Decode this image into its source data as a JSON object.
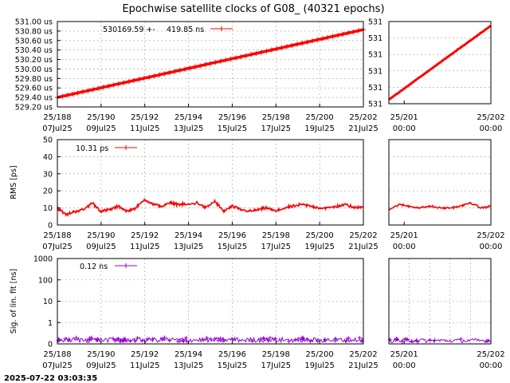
{
  "title": "Epochwise satellite clocks of G08_ (40321 epochs)",
  "timestamp": "2025-07-22 03:03:35",
  "colors": {
    "clock": "#ff0000",
    "rms": "#ff0000",
    "sigma": "#9400d3",
    "grid": "#a0a0a0"
  },
  "chart_data": [
    {
      "id": "clock-main",
      "type": "line",
      "title": "Epochwise satellite clocks of G08_ (40321 epochs)",
      "xlabel": "",
      "ylabel": "",
      "ylim": [
        529.2,
        531.0
      ],
      "yticks": [
        "531.00 us",
        "530.80 us",
        "530.60 us",
        "530.40 us",
        "530.20 us",
        "530.00 us",
        "529.80 us",
        "529.60 us",
        "529.40 us",
        "529.20 us"
      ],
      "xticks": [
        {
          "top": "25/188",
          "bottom": "07Jul25"
        },
        {
          "top": "25/190",
          "bottom": "09Jul25"
        },
        {
          "top": "25/192",
          "bottom": "11Jul25"
        },
        {
          "top": "25/194",
          "bottom": "13Jul25"
        },
        {
          "top": "25/196",
          "bottom": "15Jul25"
        },
        {
          "top": "25/198",
          "bottom": "17Jul25"
        },
        {
          "top": "25/200",
          "bottom": "19Jul25"
        },
        {
          "top": "25/202",
          "bottom": "21Jul25"
        }
      ],
      "legend": {
        "text1": "530169.59 +-",
        "text2": "419.85 ns",
        "placement": "top"
      },
      "series": [
        {
          "name": "530169.59 +- 419.85 ns",
          "x": [
            0,
            14
          ],
          "y": [
            529.4,
            530.83
          ],
          "noise": 0.004
        }
      ],
      "grid": true
    },
    {
      "id": "clock-zoom",
      "type": "line",
      "ylim": [
        530.165,
        530.175
      ],
      "yticks": [
        "531",
        "531",
        "531",
        "531",
        "531",
        "531"
      ],
      "xticks": [
        {
          "top": "25/201",
          "bottom": "00:00"
        },
        {
          "top": "25/202",
          "bottom": "00:00"
        }
      ],
      "series": [
        {
          "x": [
            0,
            1
          ],
          "y": [
            530.1655,
            530.1745
          ],
          "noise": 4e-05
        }
      ],
      "grid": true
    },
    {
      "id": "rms-main",
      "type": "line",
      "ylabel": "RMS [ps]",
      "ylim": [
        0,
        50
      ],
      "yticks": [
        "50",
        "40",
        "30",
        "20",
        "10",
        "0"
      ],
      "xticks": [
        {
          "top": "25/188",
          "bottom": "07Jul25"
        },
        {
          "top": "25/190",
          "bottom": "09Jul25"
        },
        {
          "top": "25/192",
          "bottom": "11Jul25"
        },
        {
          "top": "25/194",
          "bottom": "13Jul25"
        },
        {
          "top": "25/196",
          "bottom": "15Jul25"
        },
        {
          "top": "25/198",
          "bottom": "17Jul25"
        },
        {
          "top": "25/200",
          "bottom": "19Jul25"
        },
        {
          "top": "25/202",
          "bottom": "21Jul25"
        }
      ],
      "legend": {
        "text1": "10.31 ps",
        "placement": "top-left"
      },
      "series": [
        {
          "name": "10.31 ps",
          "x": [
            0,
            0.4,
            0.8,
            1.2,
            1.6,
            2.0,
            2.4,
            2.8,
            3.2,
            3.6,
            4.0,
            4.4,
            4.8,
            5.2,
            5.6,
            6.0,
            6.4,
            6.8,
            7.2,
            7.6,
            8.0,
            8.4,
            8.8,
            9.2,
            9.6,
            10.0,
            10.4,
            10.8,
            11.2,
            11.6,
            12.0,
            12.4,
            12.8,
            13.2,
            13.6,
            14.0
          ],
          "y": [
            10,
            6,
            8,
            9,
            13,
            8,
            9,
            11,
            8,
            10,
            15,
            12,
            11,
            13,
            12,
            12,
            13,
            10,
            14,
            8,
            11,
            9,
            8,
            9,
            10,
            8,
            10,
            11,
            12,
            11,
            10,
            10,
            11,
            12,
            10,
            11
          ],
          "noise": 1.2
        }
      ],
      "grid": true
    },
    {
      "id": "rms-zoom",
      "type": "line",
      "ylim": [
        0,
        50
      ],
      "xticks": [
        {
          "top": "25/201",
          "bottom": "00:00"
        },
        {
          "top": "25/202",
          "bottom": "00:00"
        }
      ],
      "series": [
        {
          "x": [
            0,
            0.1,
            0.2,
            0.3,
            0.4,
            0.5,
            0.6,
            0.7,
            0.8,
            0.9,
            1.0
          ],
          "y": [
            9,
            12,
            11,
            10,
            11,
            10,
            10,
            11,
            13,
            10,
            11
          ],
          "noise": 0.8
        }
      ],
      "grid": true
    },
    {
      "id": "sigma-main",
      "type": "scatter",
      "ylabel": "Sig. of lin. fit [ns]",
      "yscale": "log",
      "ylim": [
        0,
        1000
      ],
      "yticks": [
        "1000",
        "100",
        "10",
        "1",
        "0"
      ],
      "xticks": [
        {
          "top": "25/188",
          "bottom": "07Jul25"
        },
        {
          "top": "25/190",
          "bottom": "09Jul25"
        },
        {
          "top": "25/192",
          "bottom": "11Jul25"
        },
        {
          "top": "25/194",
          "bottom": "13Jul25"
        },
        {
          "top": "25/196",
          "bottom": "15Jul25"
        },
        {
          "top": "25/198",
          "bottom": "17Jul25"
        },
        {
          "top": "25/200",
          "bottom": "19Jul25"
        },
        {
          "top": "25/202",
          "bottom": "21Jul25"
        }
      ],
      "legend": {
        "text1": "0.12 ns",
        "placement": "top-left"
      },
      "series": [
        {
          "name": "0.12 ns",
          "typical": 0.12,
          "max": 0.3
        }
      ],
      "grid": true
    },
    {
      "id": "sigma-zoom",
      "type": "scatter",
      "yscale": "log",
      "ylim": [
        0,
        1000
      ],
      "xticks": [
        {
          "top": "25/201",
          "bottom": "00:00"
        },
        {
          "top": "25/202",
          "bottom": "00:00"
        }
      ],
      "series": [
        {
          "typical": 0.1,
          "max": 0.25
        }
      ],
      "grid": true
    }
  ]
}
